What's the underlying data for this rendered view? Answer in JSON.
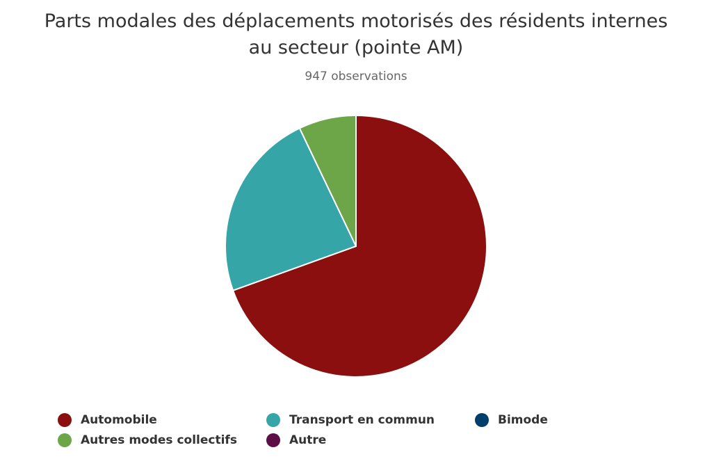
{
  "chart_data": {
    "type": "pie",
    "title": "Parts modales des déplacements motorisés des résidents internes au secteur (pointe AM)",
    "subtitle": "947 observations",
    "categories": [
      "Automobile",
      "Transport en commun",
      "Bimode",
      "Autres modes collectifs",
      "Autre"
    ],
    "values": [
      69.5,
      23.4,
      0,
      7.1,
      0
    ],
    "unit": "%",
    "colors": [
      "#8c0f0f",
      "#35a5a8",
      "#003f6b",
      "#6ca649",
      "#5c0f45"
    ],
    "legend_position": "bottom"
  }
}
